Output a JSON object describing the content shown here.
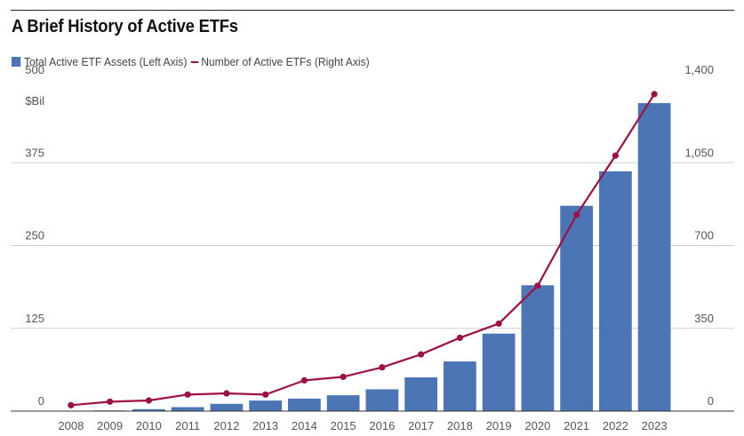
{
  "title": "A Brief History of Active ETFs",
  "legend": {
    "bars_label": "Total Active ETF Assets (Left Axis)",
    "line_label": "Number of Active ETFs (Right Axis)"
  },
  "colors": {
    "bars": "#4b75b4",
    "line": "#9e1148",
    "grid": "#cfcfcf"
  },
  "chart_data": {
    "type": "bar",
    "title": "A Brief History of Active ETFs",
    "categories": [
      "2008",
      "2009",
      "2010",
      "2011",
      "2012",
      "2013",
      "2014",
      "2015",
      "2016",
      "2017",
      "2018",
      "2019",
      "2020",
      "2021",
      "2022",
      "2023"
    ],
    "series": [
      {
        "name": "Total Active ETF Assets (Left Axis)",
        "type": "bar",
        "axis": "left",
        "values": [
          0,
          1,
          3,
          6,
          11,
          16,
          19,
          24,
          33,
          51,
          75,
          117,
          190,
          310,
          362,
          465
        ]
      },
      {
        "name": "Number of Active ETFs (Right Axis)",
        "type": "line",
        "axis": "right",
        "values": [
          25,
          40,
          45,
          70,
          75,
          70,
          130,
          145,
          185,
          240,
          310,
          370,
          530,
          830,
          1080,
          1340
        ]
      }
    ],
    "left_axis": {
      "unit": "$Bil",
      "ticks": [
        "500",
        "375",
        "250",
        "125",
        "0"
      ],
      "ylim": [
        0,
        500
      ]
    },
    "right_axis": {
      "ticks": [
        "1,400",
        "1,050",
        "700",
        "350",
        "0"
      ],
      "ylim": [
        0,
        1400
      ]
    },
    "grid": true,
    "legend_position": "top-left"
  }
}
